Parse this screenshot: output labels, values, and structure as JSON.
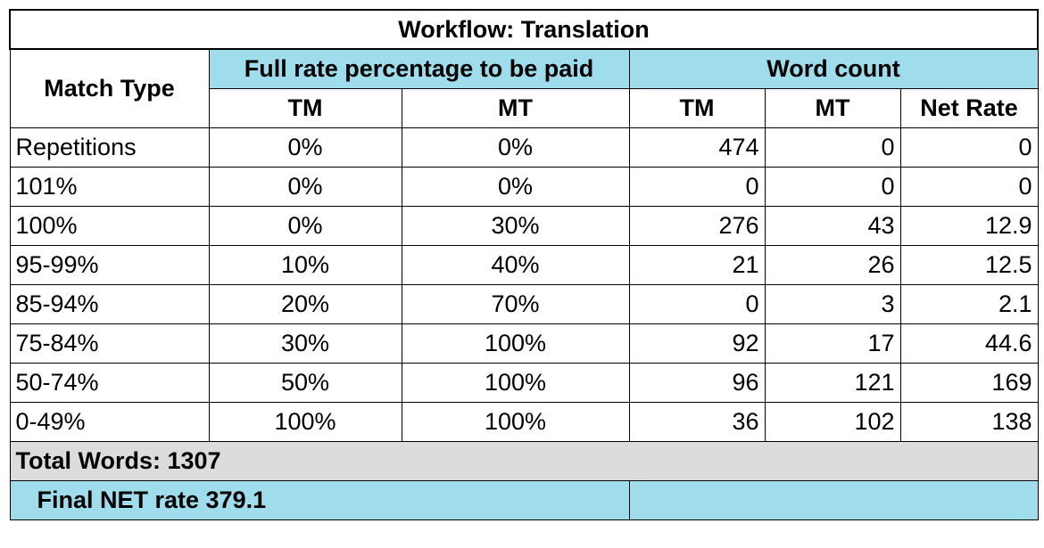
{
  "title": "Workflow: Translation",
  "headers": {
    "match_type": "Match Type",
    "full_rate": "Full rate percentage to be paid",
    "word_count": "Word count",
    "full_rate_tm": "TM",
    "full_rate_mt": "MT",
    "wc_tm": "TM",
    "wc_mt": "MT",
    "net_rate": "Net Rate"
  },
  "rows": [
    {
      "match": "Repetitions",
      "rate_tm": "0%",
      "rate_mt": "0%",
      "wc_tm": "474",
      "wc_mt": "0",
      "net": "0"
    },
    {
      "match": "101%",
      "rate_tm": "0%",
      "rate_mt": "0%",
      "wc_tm": "0",
      "wc_mt": "0",
      "net": "0"
    },
    {
      "match": "100%",
      "rate_tm": "0%",
      "rate_mt": "30%",
      "wc_tm": "276",
      "wc_mt": "43",
      "net": "12.9"
    },
    {
      "match": "95-99%",
      "rate_tm": "10%",
      "rate_mt": "40%",
      "wc_tm": "21",
      "wc_mt": "26",
      "net": "12.5"
    },
    {
      "match": "85-94%",
      "rate_tm": "20%",
      "rate_mt": "70%",
      "wc_tm": "0",
      "wc_mt": "3",
      "net": "2.1"
    },
    {
      "match": "75-84%",
      "rate_tm": "30%",
      "rate_mt": "100%",
      "wc_tm": "92",
      "wc_mt": "17",
      "net": "44.6"
    },
    {
      "match": "50-74%",
      "rate_tm": "50%",
      "rate_mt": "100%",
      "wc_tm": "96",
      "wc_mt": "121",
      "net": "169"
    },
    {
      "match": "0-49%",
      "rate_tm": "100%",
      "rate_mt": "100%",
      "wc_tm": "36",
      "wc_mt": "102",
      "net": "138"
    }
  ],
  "total_words": "Total Words: 1307",
  "final_net_rate": "Final NET rate 379.1",
  "colors": {
    "header_blue": "#9fdcec",
    "total_gray": "#dcdcdc"
  }
}
